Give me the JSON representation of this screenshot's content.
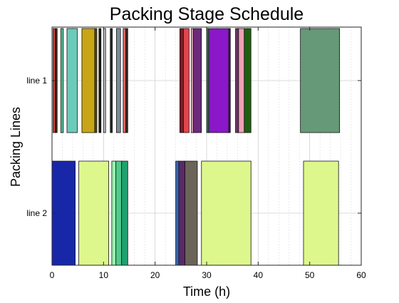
{
  "chart_data": {
    "type": "bar",
    "title": "Packing Stage Schedule",
    "xlabel": "Time (h)",
    "ylabel": "Packing Lines",
    "xlim": [
      0,
      60
    ],
    "xticks": [
      "0",
      "10",
      "20",
      "30",
      "40",
      "50",
      "60"
    ],
    "categories": [
      "line 1",
      "line 2"
    ],
    "grid": true,
    "tasks": [
      {
        "line": "line 1",
        "start": 0.2,
        "end": 0.6,
        "color": "#e34a33"
      },
      {
        "line": "line 1",
        "start": 0.6,
        "end": 1.0,
        "color": "#3d2418"
      },
      {
        "line": "line 1",
        "start": 1.7,
        "end": 2.2,
        "color": "#4fbf8f"
      },
      {
        "line": "line 1",
        "start": 2.9,
        "end": 4.9,
        "color": "#6ccab8"
      },
      {
        "line": "line 1",
        "start": 5.8,
        "end": 8.3,
        "color": "#c8a417"
      },
      {
        "line": "line 1",
        "start": 8.3,
        "end": 8.7,
        "color": "#5a4a18"
      },
      {
        "line": "line 1",
        "start": 9.1,
        "end": 9.5,
        "color": "#1a1a1a"
      },
      {
        "line": "line 1",
        "start": 10.0,
        "end": 10.4,
        "color": "#c0c0c0"
      },
      {
        "line": "line 1",
        "start": 11.3,
        "end": 11.7,
        "color": "#2a2a2a"
      },
      {
        "line": "line 1",
        "start": 12.5,
        "end": 13.3,
        "color": "#7c8d9a"
      },
      {
        "line": "line 1",
        "start": 13.8,
        "end": 14.3,
        "color": "#e06666"
      },
      {
        "line": "line 1",
        "start": 14.3,
        "end": 14.7,
        "color": "#3a2a20"
      },
      {
        "line": "line 1",
        "start": 24.8,
        "end": 25.5,
        "color": "#7a1e28"
      },
      {
        "line": "line 1",
        "start": 25.5,
        "end": 26.6,
        "color": "#e0454b"
      },
      {
        "line": "line 1",
        "start": 27.0,
        "end": 27.4,
        "color": "#f0b3c6"
      },
      {
        "line": "line 1",
        "start": 27.4,
        "end": 29.0,
        "color": "#6b2b7a"
      },
      {
        "line": "line 1",
        "start": 30.0,
        "end": 30.4,
        "color": "#2a7a3a"
      },
      {
        "line": "line 1",
        "start": 30.4,
        "end": 34.3,
        "color": "#8a17c8"
      },
      {
        "line": "line 1",
        "start": 34.3,
        "end": 34.6,
        "color": "#4a1066"
      },
      {
        "line": "line 1",
        "start": 35.6,
        "end": 36.2,
        "color": "#6a3468"
      },
      {
        "line": "line 1",
        "start": 36.2,
        "end": 37.3,
        "color": "#f0a0b4"
      },
      {
        "line": "line 1",
        "start": 37.3,
        "end": 38.6,
        "color": "#1f5e10"
      },
      {
        "line": "line 1",
        "start": 48.2,
        "end": 55.8,
        "color": "#669977"
      },
      {
        "line": "line 2",
        "start": 0.0,
        "end": 4.5,
        "color": "#1827a8"
      },
      {
        "line": "line 2",
        "start": 5.2,
        "end": 11.0,
        "color": "#ddf78d"
      },
      {
        "line": "line 2",
        "start": 11.6,
        "end": 12.4,
        "color": "#9ff0b0"
      },
      {
        "line": "line 2",
        "start": 12.4,
        "end": 13.5,
        "color": "#4fcc8a"
      },
      {
        "line": "line 2",
        "start": 13.5,
        "end": 14.7,
        "color": "#20a070"
      },
      {
        "line": "line 2",
        "start": 24.0,
        "end": 24.6,
        "color": "#3a64b0"
      },
      {
        "line": "line 2",
        "start": 24.6,
        "end": 25.8,
        "color": "#5a2a66"
      },
      {
        "line": "line 2",
        "start": 25.8,
        "end": 28.2,
        "color": "#6b6459"
      },
      {
        "line": "line 2",
        "start": 29.0,
        "end": 38.6,
        "color": "#ddf78d"
      },
      {
        "line": "line 2",
        "start": 48.8,
        "end": 55.6,
        "color": "#ddf78d"
      }
    ]
  }
}
